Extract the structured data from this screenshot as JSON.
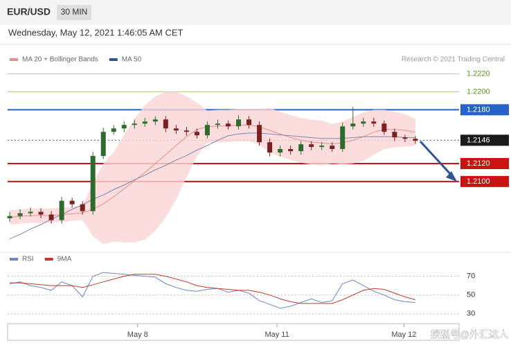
{
  "header": {
    "symbol": "EUR/USD",
    "timeframe": "30 MIN",
    "timestamp": "Wednesday, May 12, 2021 1:46:05 AM CET"
  },
  "chart_data": [
    {
      "type": "candlestick",
      "credit": "Research © 2021 Trading Central",
      "up_color": "#2e6b2e",
      "down_color": "#7a2222",
      "open": [
        1.2059,
        1.20615,
        1.20646,
        1.20662,
        1.20631,
        1.20569,
        1.20785,
        1.20746,
        1.20669,
        1.21285,
        1.21554,
        1.21592,
        1.21631,
        1.21646,
        1.21669,
        1.21692,
        1.21592,
        1.21569,
        1.21554,
        1.21515,
        1.21631,
        1.21646,
        1.21615,
        1.21692,
        1.21631,
        1.21438,
        1.21323,
        1.21362,
        1.21338,
        1.21415,
        1.21385,
        1.214,
        1.21362,
        1.21615,
        1.21646,
        1.21669,
        1.21646,
        1.21554,
        1.21492,
        1.21477
      ],
      "high": [
        1.2066,
        1.2069,
        1.2071,
        1.207,
        1.2067,
        1.2083,
        1.2082,
        1.2078,
        1.2133,
        1.216,
        1.2163,
        1.2167,
        1.2169,
        1.2171,
        1.2173,
        1.2173,
        1.2163,
        1.2161,
        1.2159,
        1.2167,
        1.2169,
        1.2168,
        1.2174,
        1.2173,
        1.2167,
        1.2148,
        1.214,
        1.214,
        1.2145,
        1.2145,
        1.2144,
        1.2144,
        1.2166,
        1.2183,
        1.2171,
        1.2171,
        1.2168,
        1.2159,
        1.2152,
        1.2151
      ],
      "low": [
        1.2055,
        1.2058,
        1.2061,
        1.2059,
        1.2053,
        1.2053,
        1.2071,
        1.2063,
        1.2063,
        1.2125,
        1.2152,
        1.2155,
        1.2159,
        1.2161,
        1.2163,
        1.2155,
        1.2153,
        1.2151,
        1.2148,
        1.2148,
        1.2159,
        1.2158,
        1.2158,
        1.2159,
        1.214,
        1.2128,
        1.2128,
        1.213,
        1.213,
        1.2135,
        1.2135,
        1.2133,
        1.2133,
        1.2158,
        1.2161,
        1.2161,
        1.2152,
        1.2145,
        1.2144,
        1.2142
      ],
      "close": [
        1.20615,
        1.20646,
        1.20662,
        1.20631,
        1.20569,
        1.20785,
        1.20746,
        1.20669,
        1.21285,
        1.21554,
        1.21592,
        1.21631,
        1.21646,
        1.21669,
        1.21692,
        1.21592,
        1.21569,
        1.21554,
        1.21515,
        1.21631,
        1.21646,
        1.21615,
        1.21692,
        1.21631,
        1.21438,
        1.21323,
        1.21362,
        1.21338,
        1.21415,
        1.21385,
        1.214,
        1.21362,
        1.21615,
        1.21646,
        1.21669,
        1.21646,
        1.21554,
        1.21492,
        1.21477,
        1.21454
      ],
      "series": [
        {
          "name": "MA 20 + Bollinger Bands",
          "color": "#e88c8c",
          "band_color": "#fbd5d5",
          "values": [
            1.206,
            1.2061,
            1.2062,
            1.2062,
            1.2062,
            1.2063,
            1.2064,
            1.2065,
            1.2069,
            1.2075,
            1.2083,
            1.2092,
            1.2101,
            1.211,
            1.212,
            1.213,
            1.214,
            1.215,
            1.2158,
            1.2161,
            1.2162,
            1.2162,
            1.2163,
            1.2163,
            1.2161,
            1.2157,
            1.2153,
            1.2149,
            1.2146,
            1.2144,
            1.2143,
            1.2142,
            1.2143,
            1.2146,
            1.215,
            1.2155,
            1.2158,
            1.2158,
            1.2157,
            1.2155
          ],
          "upper": [
            1.2068,
            1.2069,
            1.207,
            1.207,
            1.207,
            1.2071,
            1.2072,
            1.2073,
            1.2099,
            1.212,
            1.2133,
            1.2152,
            1.217,
            1.2185,
            1.2195,
            1.22,
            1.22,
            1.2195,
            1.2188,
            1.2179,
            1.218,
            1.218,
            1.2181,
            1.2181,
            1.2181,
            1.2182,
            1.2178,
            1.2174,
            1.2171,
            1.2169,
            1.2168,
            1.2164,
            1.2167,
            1.2172,
            1.2177,
            1.218,
            1.218,
            1.2178,
            1.2175,
            1.217
          ],
          "lower": [
            1.2052,
            1.2053,
            1.2054,
            1.2054,
            1.2054,
            1.2055,
            1.2056,
            1.2057,
            1.2039,
            1.203,
            1.2033,
            1.2032,
            1.2032,
            1.2035,
            1.2045,
            1.206,
            1.208,
            1.2105,
            1.2128,
            1.2143,
            1.2144,
            1.2144,
            1.2145,
            1.2145,
            1.2141,
            1.2132,
            1.2128,
            1.2124,
            1.2121,
            1.2119,
            1.2118,
            1.212,
            1.2119,
            1.212,
            1.2123,
            1.213,
            1.2136,
            1.2138,
            1.2139,
            1.214
          ]
        },
        {
          "name": "MA 50",
          "color": "#7a86b0",
          "legend_color": "#2f5597",
          "values": [
            1.2036,
            1.2041,
            1.2047,
            1.2052,
            1.2058,
            1.2063,
            1.2069,
            1.2074,
            1.208,
            1.2085,
            1.2091,
            1.2096,
            1.2102,
            1.2107,
            1.2113,
            1.2118,
            1.2124,
            1.2129,
            1.2135,
            1.214,
            1.2146,
            1.2151,
            1.2153,
            1.2154,
            1.2154,
            1.2153,
            1.2152,
            1.2151,
            1.215,
            1.2149,
            1.2148,
            1.2148,
            1.2148,
            1.2149,
            1.215,
            1.215,
            1.215,
            1.215,
            1.2149,
            1.2149
          ]
        }
      ],
      "xlim": [
        -0.2,
        43.2
      ],
      "ylim": [
        1.2028,
        1.2229
      ],
      "yticks": [
        {
          "value": 1.222,
          "label": "1.2220",
          "color": "#5a9a1a",
          "line_color": "#b8bfd6",
          "boxed": false,
          "style": "solid"
        },
        {
          "value": 1.22,
          "label": "1.2200",
          "color": "#5a9a1a",
          "line_color": "#a8c890",
          "boxed": false,
          "style": "solid"
        },
        {
          "value": 1.218,
          "label": "1.2180",
          "color": "#2563c9",
          "line_color": "#2563c9",
          "boxed": true,
          "style": "solid"
        },
        {
          "value": 1.2146,
          "label": "1.2146",
          "color": "#1a1a1a",
          "line_color": "#555555",
          "boxed": true,
          "style": "dotted"
        },
        {
          "value": 1.212,
          "label": "1.2120",
          "color": "#cc1111",
          "line_color": "#cc1111",
          "boxed": true,
          "style": "solid"
        },
        {
          "value": 1.21,
          "label": "1.2100",
          "color": "#cc1111",
          "line_color": "#cc1111",
          "boxed": true,
          "style": "solid"
        }
      ]
    },
    {
      "type": "line",
      "watermark": "搜狐号@外汇达人",
      "series": [
        {
          "name": "RSI",
          "color": "#6b86c8",
          "values": [
            62,
            64,
            60,
            58,
            55,
            64,
            60,
            48,
            70,
            74,
            73,
            72,
            71,
            70,
            69,
            62,
            58,
            55,
            54,
            56,
            57,
            53,
            55,
            52,
            44,
            40,
            36,
            38,
            42,
            46,
            42,
            44,
            62,
            66,
            60,
            54,
            50,
            45,
            43,
            42
          ]
        },
        {
          "name": "9MA",
          "color": "#c0392b",
          "values": [
            63,
            63,
            62,
            61,
            60,
            60,
            60,
            58,
            61,
            64,
            67,
            70,
            72,
            72,
            72,
            70,
            67,
            64,
            60,
            58,
            57,
            56,
            55,
            55,
            53,
            50,
            46,
            43,
            41,
            41,
            41,
            41,
            45,
            50,
            55,
            57,
            56,
            52,
            48,
            45
          ]
        }
      ],
      "xlim": [
        -0.2,
        43.2
      ],
      "xticks": [
        {
          "value": 12.3,
          "label": "May 8"
        },
        {
          "value": 25.7,
          "label": "May 11"
        },
        {
          "value": 37.9,
          "label": "May 12"
        }
      ],
      "ylim": [
        21,
        80
      ],
      "yticks": [
        30,
        50,
        70
      ],
      "grid": true
    }
  ]
}
